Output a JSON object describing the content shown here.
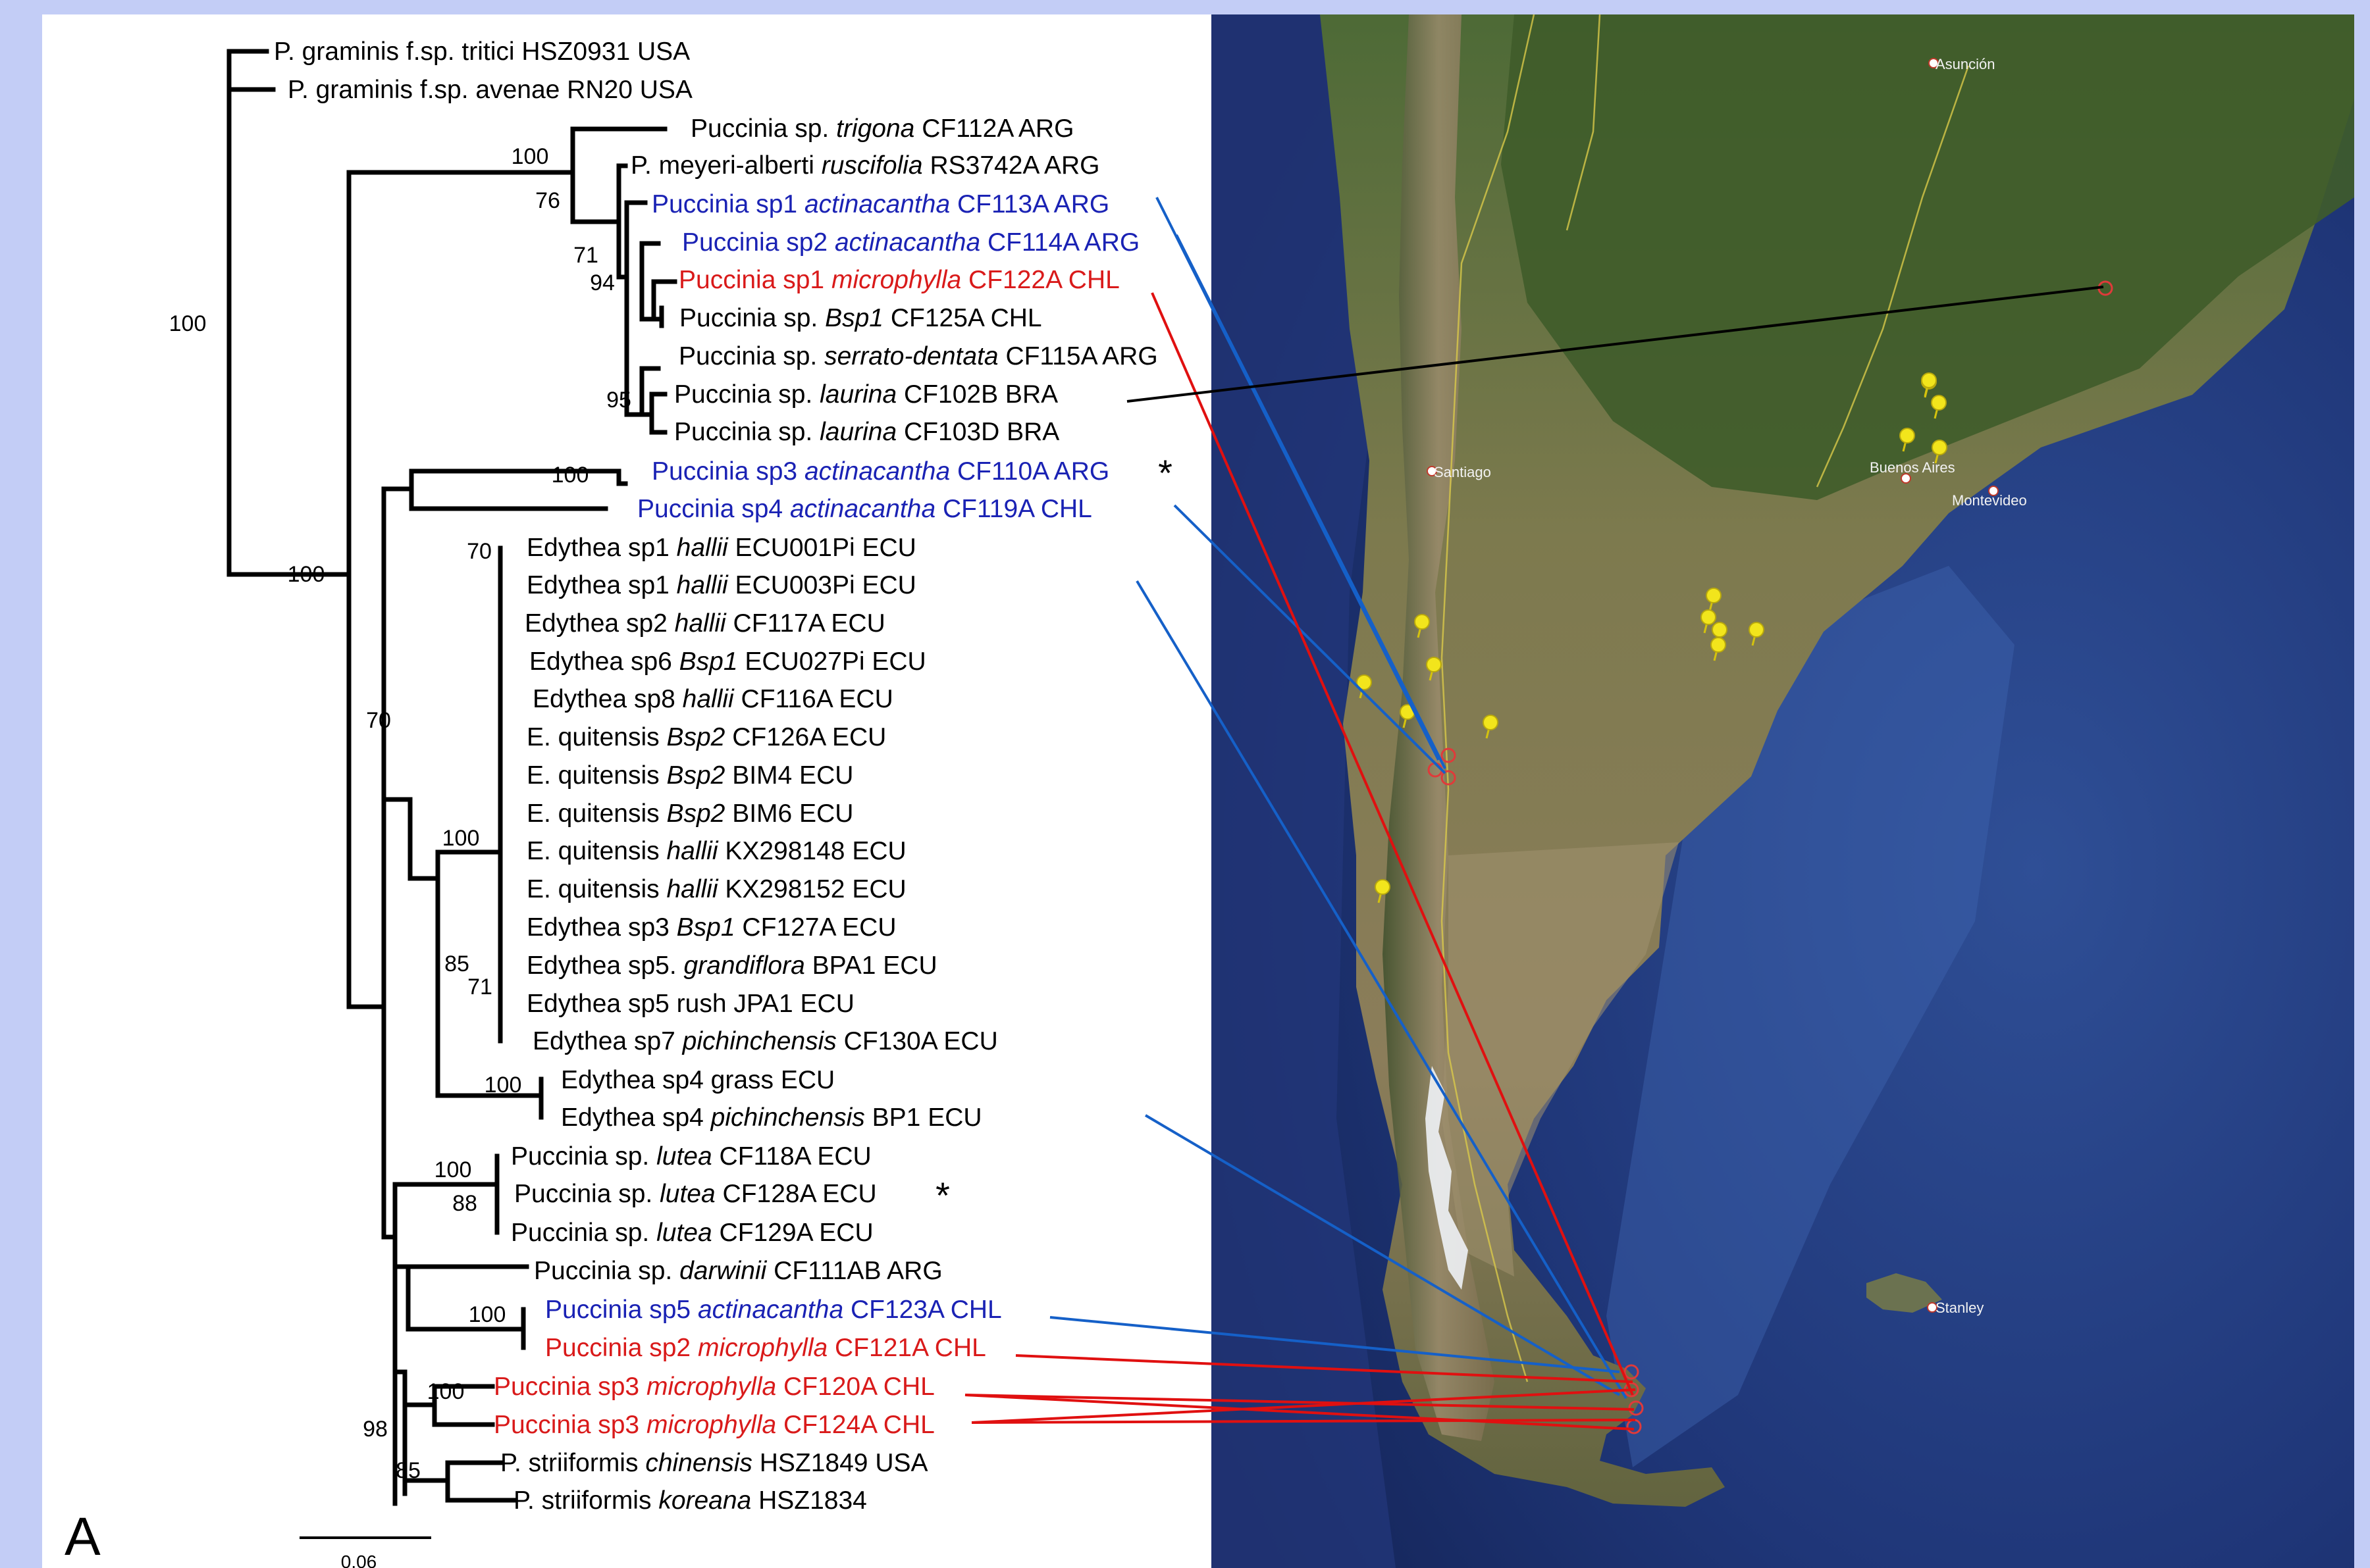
{
  "panel_label": "A",
  "scale_bar_label": "0.06",
  "colors": {
    "black": "#000000",
    "blue": "#1a22b4",
    "red": "#d91a1a",
    "link_blue": "#1560c8",
    "link_red": "#e01010",
    "pin": "#f2e51c"
  },
  "taxa": [
    {
      "prefix": "P. graminis f.sp. tritici HSZ0931 USA",
      "italic": "",
      "suffix": "",
      "color": "black"
    },
    {
      "prefix": "P. graminis f.sp. avenae RN20 USA",
      "italic": "",
      "suffix": "",
      "color": "black"
    },
    {
      "prefix": "Puccinia sp. ",
      "italic": "trigona",
      "suffix": " CF112A ARG",
      "color": "black"
    },
    {
      "prefix": "P. meyeri-alberti ",
      "italic": "ruscifolia",
      "suffix": " RS3742A ARG",
      "color": "black"
    },
    {
      "prefix": "Puccinia sp1 ",
      "italic": "actinacantha",
      "suffix": " CF113A ARG",
      "color": "blue"
    },
    {
      "prefix": "Puccinia sp2 ",
      "italic": "actinacantha",
      "suffix": " CF114A ARG",
      "color": "blue"
    },
    {
      "prefix": "Puccinia sp1 ",
      "italic": "microphylla",
      "suffix": " CF122A CHL",
      "color": "red"
    },
    {
      "prefix": "Puccinia sp. ",
      "italic": "Bsp1",
      "suffix": " CF125A CHL",
      "color": "black"
    },
    {
      "prefix": "Puccinia sp. ",
      "italic": "serrato-dentata",
      "suffix": " CF115A ARG",
      "color": "black"
    },
    {
      "prefix": "Puccinia sp. ",
      "italic": "laurina",
      "suffix": " CF102B BRA",
      "color": "black"
    },
    {
      "prefix": "Puccinia sp. ",
      "italic": "laurina",
      "suffix": " CF103D BRA",
      "color": "black"
    },
    {
      "prefix": "Puccinia sp3 ",
      "italic": "actinacantha",
      "suffix": " CF110A ARG",
      "color": "blue"
    },
    {
      "prefix": "Puccinia sp4 ",
      "italic": "actinacantha",
      "suffix": " CF119A CHL",
      "color": "blue"
    },
    {
      "prefix": "Edythea sp1 ",
      "italic": "hallii",
      "suffix": " ECU001Pi ECU",
      "color": "black"
    },
    {
      "prefix": "Edythea sp1 ",
      "italic": "hallii",
      "suffix": " ECU003Pi ECU",
      "color": "black"
    },
    {
      "prefix": "Edythea sp2 ",
      "italic": "hallii",
      "suffix": " CF117A ECU",
      "color": "black"
    },
    {
      "prefix": "Edythea sp6 ",
      "italic": "Bsp1",
      "suffix": " ECU027Pi ECU",
      "color": "black"
    },
    {
      "prefix": "Edythea sp8 ",
      "italic": "hallii",
      "suffix": " CF116A ECU",
      "color": "black"
    },
    {
      "prefix": "E. quitensis ",
      "italic": "Bsp2",
      "suffix": " CF126A ECU",
      "color": "black"
    },
    {
      "prefix": "E. quitensis ",
      "italic": "Bsp2",
      "suffix": " BIM4 ECU",
      "color": "black"
    },
    {
      "prefix": "E. quitensis ",
      "italic": "Bsp2",
      "suffix": " BIM6 ECU",
      "color": "black"
    },
    {
      "prefix": "E. quitensis ",
      "italic": "hallii",
      "suffix": " KX298148 ECU",
      "color": "black"
    },
    {
      "prefix": "E. quitensis ",
      "italic": "hallii",
      "suffix": " KX298152 ECU",
      "color": "black"
    },
    {
      "prefix": "Edythea sp3 ",
      "italic": "Bsp1",
      "suffix": " CF127A ECU",
      "color": "black"
    },
    {
      "prefix": "Edythea sp5. ",
      "italic": "grandiflora",
      "suffix": " BPA1 ECU",
      "color": "black"
    },
    {
      "prefix": "Edythea sp5 rush JPA1 ECU",
      "italic": "",
      "suffix": "",
      "color": "black"
    },
    {
      "prefix": "Edythea sp7 ",
      "italic": "pichinchensis",
      "suffix": " CF130A ECU",
      "color": "black"
    },
    {
      "prefix": "Edythea sp4 grass ECU",
      "italic": "",
      "suffix": "",
      "color": "black"
    },
    {
      "prefix": "Edythea sp4 ",
      "italic": "pichinchensis",
      "suffix": " BP1 ECU",
      "color": "black"
    },
    {
      "prefix": "Puccinia sp. ",
      "italic": "lutea",
      "suffix": " CF118A ECU",
      "color": "black"
    },
    {
      "prefix": "Puccinia sp. ",
      "italic": "lutea",
      "suffix": " CF128A ECU",
      "color": "black"
    },
    {
      "prefix": "Puccinia sp. ",
      "italic": "lutea",
      "suffix": " CF129A ECU",
      "color": "black"
    },
    {
      "prefix": "Puccinia sp. ",
      "italic": "darwinii",
      "suffix": " CF111AB ARG",
      "color": "black"
    },
    {
      "prefix": "Puccinia sp5 ",
      "italic": "actinacantha",
      "suffix": " CF123A CHL",
      "color": "blue"
    },
    {
      "prefix": "Puccinia sp2 ",
      "italic": "microphylla",
      "suffix": " CF121A CHL",
      "color": "red"
    },
    {
      "prefix": "Puccinia sp3 ",
      "italic": "microphylla",
      "suffix": " CF120A CHL",
      "color": "red"
    },
    {
      "prefix": "Puccinia sp3 ",
      "italic": "microphylla",
      "suffix": " CF124A CHL",
      "color": "red"
    },
    {
      "prefix": "P. striiformis ",
      "italic": "chinensis",
      "suffix": " HSZ1849 USA",
      "color": "black"
    },
    {
      "prefix": "P. striiformis ",
      "italic": "koreana",
      "suffix": " HSZ1834",
      "color": "black"
    }
  ],
  "supports": [
    "100",
    "100",
    "76",
    "71",
    "94",
    "95",
    "100",
    "100",
    "70",
    "70",
    "100",
    "85",
    "71",
    "100",
    "100",
    "88",
    "100",
    "100",
    "98",
    "85"
  ],
  "asterisk": "*",
  "map_labels": [
    "Asunción",
    "Santiago",
    "Buenos Aires",
    "Montevideo",
    "Stanley"
  ]
}
